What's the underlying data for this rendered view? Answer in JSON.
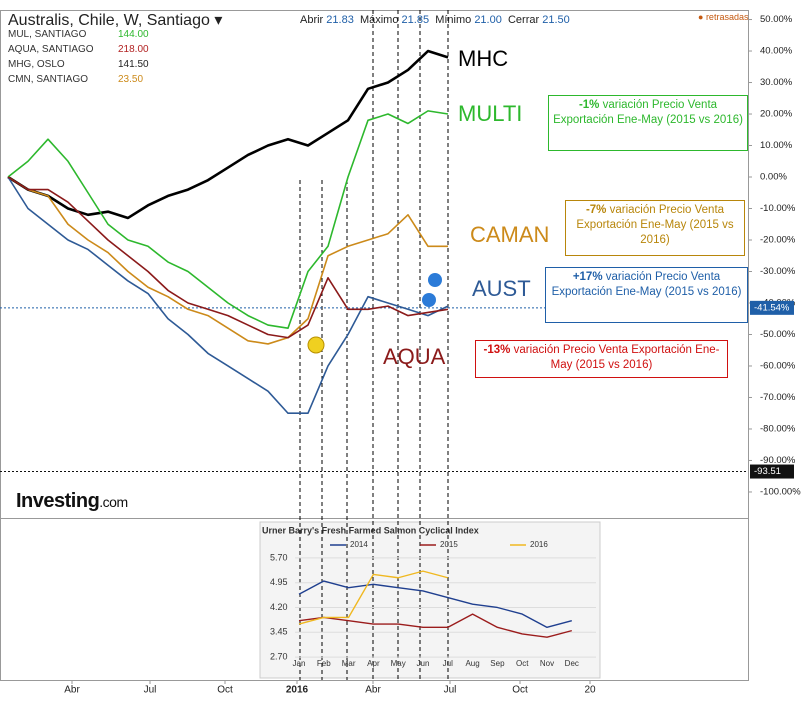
{
  "header": {
    "title": "Australis, Chile, W, Santiago",
    "open_label": "Abrir",
    "open": "21.83",
    "high_label": "Máximo",
    "high": "21.85",
    "low_label": "Mínimo",
    "low": "21.00",
    "close_label": "Cerrar",
    "close": "21.50",
    "status": "retrasadas"
  },
  "quotes": [
    {
      "name": "MUL, SANTIAGO",
      "value": "144.00",
      "color": "#2db82d"
    },
    {
      "name": "AQUA, SANTIAGO",
      "value": "218.00",
      "color": "#b22222"
    },
    {
      "name": "MHG, OSLO",
      "value": "141.50",
      "color": "#222222"
    },
    {
      "name": "CMN, SANTIAGO",
      "value": "23.50",
      "color": "#cc8a1a"
    }
  ],
  "logo": {
    "brand": "Investing",
    "suffix": ".com"
  },
  "annotations": [
    {
      "bold": "-1%",
      "text": " variación Precio Venta Exportación  Ene-May (2015 vs 2016)",
      "color": "#2db82d"
    },
    {
      "bold": "-7%",
      "text": " variación Precio Venta Exportación Ene-May (2015 vs 2016)",
      "color": "#b8860b"
    },
    {
      "bold": "+17%",
      "text": " variación Precio Venta Exportación  Ene-May (2015 vs 2016)",
      "color": "#1f5fa8"
    },
    {
      "bold": "-13%",
      "text": " variación Precio Venta Exportación Ene-May (2015 vs 2016)",
      "color": "#d01010"
    }
  ],
  "chart_data": [
    {
      "type": "line",
      "xlim": [
        -0.4,
        37
      ],
      "ylim": [
        -108.9,
        56.2
      ],
      "xticks": [
        {
          "value": 3.2,
          "label": "Abr"
        },
        {
          "value": 7.1,
          "label": "Jul"
        },
        {
          "value": 10.85,
          "label": "Oct"
        },
        {
          "value": 14.45,
          "label": "2016"
        },
        {
          "value": 18.25,
          "label": "Abr"
        },
        {
          "value": 22.1,
          "label": "Jul"
        },
        {
          "value": 25.6,
          "label": "Oct"
        },
        {
          "value": 29.1,
          "label": "20"
        }
      ],
      "yticks": [
        {
          "value": 50,
          "label": "50.00%"
        },
        {
          "value": 40,
          "label": "40.00%"
        },
        {
          "value": 30,
          "label": "30.00%"
        },
        {
          "value": 20,
          "label": "20.00%"
        },
        {
          "value": 10,
          "label": "10.00%"
        },
        {
          "value": 0,
          "label": "0.00%"
        },
        {
          "value": -10,
          "label": "-10.00%"
        },
        {
          "value": -20,
          "label": "-20.00%"
        },
        {
          "value": -30,
          "label": "-30.00%"
        },
        {
          "value": -40,
          "label": "-40.00%"
        },
        {
          "value": -50,
          "label": "-50.00%"
        },
        {
          "value": -60,
          "label": "-60.00%"
        },
        {
          "value": -70,
          "label": "-70.00%"
        },
        {
          "value": -80,
          "label": "-80.00%"
        },
        {
          "value": -90,
          "label": "-90.00%"
        },
        {
          "value": -100,
          "label": "-100.00%"
        }
      ],
      "markers": [
        {
          "value": -41.54,
          "label": "-41.54%",
          "color": "#1f5fa8"
        },
        {
          "value": -93.51,
          "label": "-93.51",
          "color": "#111111"
        }
      ],
      "series": [
        {
          "name": "MHC",
          "color": "#000000",
          "values": [
            0,
            -4,
            -6,
            -10,
            -12,
            -11,
            -13,
            -9,
            -6,
            -4,
            -1,
            3,
            7,
            10,
            12,
            10,
            14,
            18,
            28,
            30,
            34,
            40,
            38
          ]
        },
        {
          "name": "MULTI",
          "color": "#2db82d",
          "values": [
            0,
            5,
            12,
            5,
            -5,
            -15,
            -20,
            -22,
            -27,
            -30,
            -35,
            -40,
            -44,
            -47,
            -48,
            -30,
            -22,
            0,
            18,
            20,
            17,
            21,
            20
          ]
        },
        {
          "name": "CAMAN",
          "color": "#cc8a1a",
          "values": [
            0,
            -4,
            -6,
            -15,
            -20,
            -24,
            -30,
            -35,
            -38,
            -42,
            -44,
            -48,
            -52,
            -53,
            -51,
            -45,
            -25,
            -22,
            -20,
            -18,
            -12,
            -22,
            -22
          ]
        },
        {
          "name": "AUST",
          "color": "#2e5a96",
          "values": [
            0,
            -10,
            -15,
            -20,
            -23,
            -28,
            -33,
            -37,
            -45,
            -50,
            -56,
            -60,
            -64,
            -68,
            -75,
            -75,
            -60,
            -50,
            -38,
            -40,
            -42,
            -44,
            -41
          ]
        },
        {
          "name": "AQUA",
          "color": "#8b1a1a",
          "values": [
            0,
            -4,
            -4,
            -8,
            -14,
            -20,
            -25,
            -30,
            -36,
            -40,
            -42,
            -44,
            -47,
            -50,
            -51,
            -47,
            -32,
            -42,
            -42,
            -41,
            -44,
            -43,
            -42
          ]
        }
      ]
    },
    {
      "type": "line",
      "title": "Urner Barry's Fresh Farmed Salmon Cyclical Index",
      "categories": [
        "Jan",
        "Feb",
        "Mar",
        "Apr",
        "May",
        "Jun",
        "Jul",
        "Aug",
        "Sep",
        "Oct",
        "Nov",
        "Dec"
      ],
      "ylim": [
        2.46,
        6.0
      ],
      "yticks": [
        {
          "value": 5.7,
          "label": "5.70"
        },
        {
          "value": 4.95,
          "label": "4.95"
        },
        {
          "value": 4.2,
          "label": "4.20"
        },
        {
          "value": 3.45,
          "label": "3.45"
        },
        {
          "value": 2.7,
          "label": "2.70"
        }
      ],
      "series": [
        {
          "name": "2014",
          "color": "#1f3f8f",
          "values": [
            4.6,
            5.0,
            4.8,
            4.9,
            4.8,
            4.7,
            4.5,
            4.3,
            4.2,
            4.0,
            3.6,
            3.8
          ]
        },
        {
          "name": "2015",
          "color": "#9b1c1c",
          "values": [
            3.8,
            3.9,
            3.8,
            3.7,
            3.7,
            3.6,
            3.6,
            4.0,
            3.6,
            3.4,
            3.3,
            3.5
          ]
        },
        {
          "name": "2016",
          "color": "#f0b820",
          "values": [
            3.7,
            3.9,
            3.9,
            5.2,
            5.1,
            5.3,
            5.1,
            null,
            null,
            null,
            null,
            null
          ]
        }
      ]
    }
  ]
}
